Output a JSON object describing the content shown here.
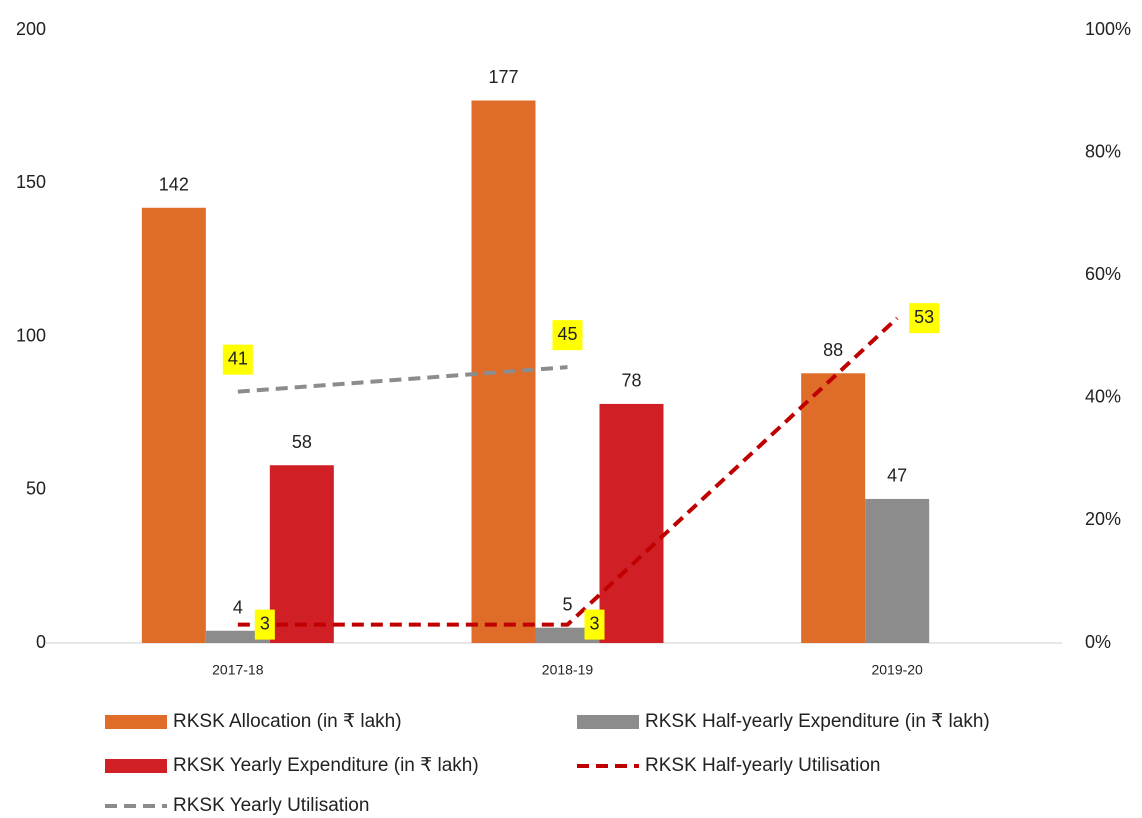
{
  "chart_data": {
    "type": "bar",
    "categories": [
      "2017-18",
      "2018-19",
      "2019-20"
    ],
    "series": [
      {
        "name": "RKSK Allocation (in ₹ lakh)",
        "color": "#e06c2a",
        "values": [
          142,
          177,
          88
        ]
      },
      {
        "name": "RKSK Half-yearly Expenditure (in ₹ lakh)",
        "color": "#8c8c8c",
        "values": [
          4,
          5,
          47
        ]
      },
      {
        "name": "RKSK Yearly Expenditure (in ₹ lakh)",
        "color": "#d11f26",
        "values": [
          58,
          78,
          null
        ]
      },
      {
        "name": "RKSK Half-yearly Utilisation",
        "color": "#c00000",
        "type": "line",
        "dashed": true,
        "axis": "y2",
        "values": [
          3,
          3,
          53
        ]
      },
      {
        "name": "RKSK Yearly Utilisation",
        "color": "#8c8c8c",
        "type": "line",
        "dashed": true,
        "axis": "y2",
        "values": [
          41,
          45,
          null
        ]
      }
    ],
    "ylim": [
      0,
      200
    ],
    "yticks": [
      0,
      50,
      100,
      150,
      200
    ],
    "y2lim": [
      0,
      100
    ],
    "y2ticks": [
      {
        "value": 0,
        "label": "0%"
      },
      {
        "value": 20,
        "label": "20%"
      },
      {
        "value": 40,
        "label": "40%"
      },
      {
        "value": 60,
        "label": "60%"
      },
      {
        "value": 80,
        "label": "80%"
      },
      {
        "value": 100,
        "label": "100%"
      }
    ],
    "grid": false,
    "legend": "bottom"
  }
}
